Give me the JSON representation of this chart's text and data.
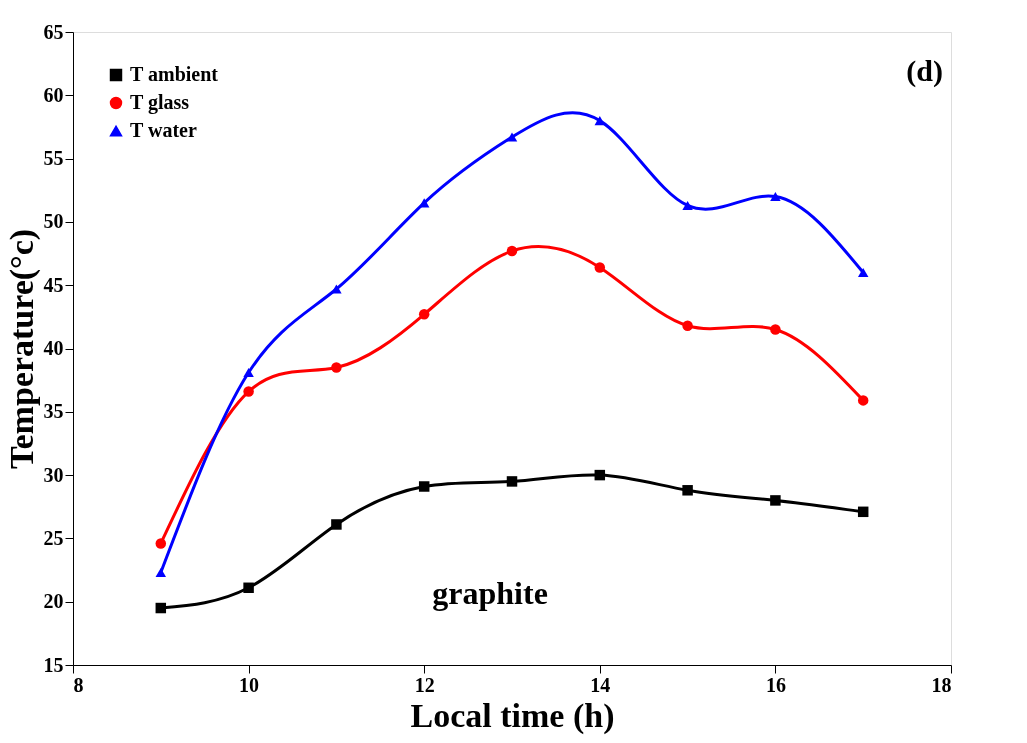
{
  "chart_data": {
    "type": "line",
    "xlabel": "Local time (h)",
    "ylabel": "Temperature(°c)",
    "x": [
      9,
      10,
      11,
      12,
      13,
      14,
      15,
      16,
      17
    ],
    "series": [
      {
        "name": "T ambient",
        "color": "#000000",
        "marker": "square",
        "values": [
          19.5,
          21.1,
          26.1,
          29.1,
          29.5,
          30.0,
          28.8,
          28.0,
          27.1
        ]
      },
      {
        "name": "T glass",
        "color": "#ff0000",
        "marker": "circle",
        "values": [
          24.6,
          36.6,
          38.5,
          42.7,
          47.7,
          46.4,
          41.8,
          41.5,
          35.9
        ]
      },
      {
        "name": "T water",
        "color": "#0000ff",
        "marker": "triangle",
        "values": [
          22.3,
          38.1,
          44.7,
          51.5,
          56.7,
          58.0,
          51.3,
          52.0,
          46.0
        ]
      }
    ],
    "xlim": [
      8,
      18
    ],
    "xticks": [
      8,
      10,
      12,
      14,
      16,
      18
    ],
    "ylim": [
      15,
      65
    ],
    "yticks": [
      15,
      20,
      25,
      30,
      35,
      40,
      45,
      50,
      55,
      60,
      65
    ],
    "annotations": [
      "(d)",
      "graphite"
    ],
    "grid": false,
    "legend": "top left",
    "line_style": "solid"
  }
}
